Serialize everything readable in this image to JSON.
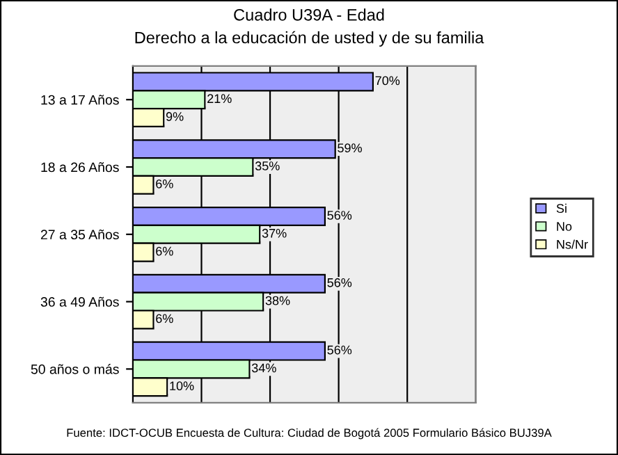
{
  "chart_data": {
    "type": "bar",
    "orientation": "horizontal",
    "title": "Cuadro U39A - Edad",
    "subtitle": "Derecho a la educación de usted y de su familia",
    "categories": [
      "13 a 17 Años",
      "18 a 26 Años",
      "27 a 35 Años",
      "36 a 49 Años",
      "50 años o más"
    ],
    "series": [
      {
        "name": "Si",
        "color": "#9999ff",
        "values": [
          70,
          59,
          56,
          56,
          56
        ],
        "value_labels": [
          "70%",
          "59%",
          "56%",
          "56%",
          "56%"
        ]
      },
      {
        "name": "No",
        "color": "#ccffcc",
        "values": [
          21,
          35,
          37,
          38,
          34
        ],
        "value_labels": [
          "21%",
          "35%",
          "37%",
          "38%",
          "34%"
        ]
      },
      {
        "name": "Ns/Nr",
        "color": "#ffffcc",
        "values": [
          9,
          6,
          6,
          6,
          10
        ],
        "value_labels": [
          "9%",
          "6%",
          "6%",
          "6%",
          "10%"
        ]
      }
    ],
    "xlim": [
      0,
      100
    ],
    "xticks": [
      {
        "value": 0,
        "label": null
      },
      {
        "value": 20,
        "label": null
      },
      {
        "value": 40,
        "label": null
      },
      {
        "value": 60,
        "label": null
      },
      {
        "value": 80,
        "label": null
      },
      {
        "value": 100,
        "label": null
      }
    ],
    "grid": "x",
    "legend": "right",
    "annotations": [
      "Fuente: IDCT-OCUB Encuesta de Cultura: Ciudad de Bogotá 2005 Formulario Básico BUJ39A"
    ]
  }
}
